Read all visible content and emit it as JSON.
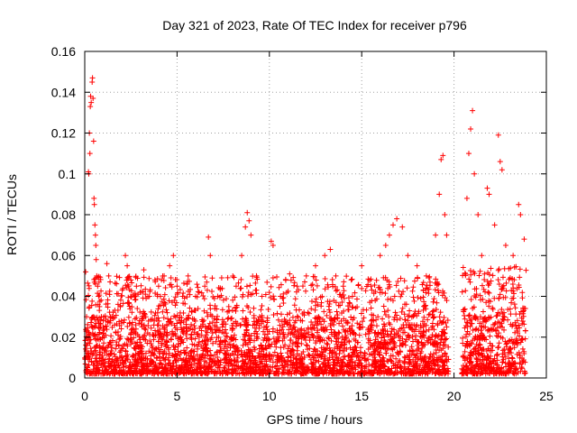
{
  "chart_data": {
    "type": "scatter",
    "title": "Day 321 of 2023, Rate Of TEC Index for receiver p796",
    "xlabel": "GPS time / hours",
    "ylabel": "ROTI / TECUs",
    "xlim": [
      0,
      25
    ],
    "ylim": [
      0,
      0.16
    ],
    "x_ticks": [
      0,
      5,
      10,
      15,
      20,
      25
    ],
    "y_ticks": [
      0,
      0.02,
      0.04,
      0.06,
      0.08,
      0.1,
      0.12,
      0.14,
      0.16
    ],
    "x_tick_labels": [
      "0",
      "5",
      "10",
      "15",
      "20",
      "25"
    ],
    "y_tick_labels": [
      "0",
      "0.02",
      "0.04",
      "0.06",
      "0.08",
      "0.1",
      "0.12",
      "0.14",
      "0.16"
    ],
    "grid": true,
    "marker": "plus",
    "color": "#ff0000",
    "series": [
      {
        "points": [
          [
            0.05,
            0.052
          ],
          [
            0.1,
            0.03
          ],
          [
            0.15,
            0.02
          ],
          [
            0.2,
            0.101
          ],
          [
            0.22,
            0.1
          ],
          [
            0.25,
            0.12
          ],
          [
            0.28,
            0.11
          ],
          [
            0.3,
            0.133
          ],
          [
            0.32,
            0.138
          ],
          [
            0.35,
            0.135
          ],
          [
            0.4,
            0.145
          ],
          [
            0.42,
            0.147
          ],
          [
            0.45,
            0.137
          ],
          [
            0.48,
            0.116
          ],
          [
            0.5,
            0.088
          ],
          [
            0.52,
            0.085
          ],
          [
            0.55,
            0.075
          ],
          [
            0.58,
            0.07
          ],
          [
            0.6,
            0.065
          ],
          [
            0.62,
            0.058
          ],
          [
            0.65,
            0.05
          ],
          [
            0.7,
            0.045
          ],
          [
            0.75,
            0.04
          ],
          [
            0.8,
            0.035
          ],
          [
            0.9,
            0.03
          ],
          [
            1.0,
            0.028
          ],
          [
            1.2,
            0.056
          ],
          [
            1.3,
            0.05
          ],
          [
            1.5,
            0.03
          ],
          [
            2.2,
            0.06
          ],
          [
            2.3,
            0.055
          ],
          [
            2.5,
            0.048
          ],
          [
            2.8,
            0.045
          ],
          [
            3.0,
            0.042
          ],
          [
            3.2,
            0.053
          ],
          [
            3.5,
            0.04
          ],
          [
            3.8,
            0.048
          ],
          [
            4.0,
            0.045
          ],
          [
            4.3,
            0.05
          ],
          [
            4.6,
            0.055
          ],
          [
            4.8,
            0.06
          ],
          [
            5.0,
            0.045
          ],
          [
            5.3,
            0.04
          ],
          [
            5.6,
            0.05
          ],
          [
            6.0,
            0.04
          ],
          [
            6.5,
            0.045
          ],
          [
            6.7,
            0.069
          ],
          [
            6.8,
            0.06
          ],
          [
            7.2,
            0.04
          ],
          [
            7.8,
            0.035
          ],
          [
            8.2,
            0.045
          ],
          [
            8.5,
            0.06
          ],
          [
            8.7,
            0.074
          ],
          [
            8.8,
            0.081
          ],
          [
            8.9,
            0.077
          ],
          [
            9.0,
            0.07
          ],
          [
            9.3,
            0.05
          ],
          [
            9.6,
            0.04
          ],
          [
            10.1,
            0.067
          ],
          [
            10.2,
            0.065
          ],
          [
            10.6,
            0.04
          ],
          [
            11.1,
            0.051
          ],
          [
            11.5,
            0.045
          ],
          [
            12.0,
            0.05
          ],
          [
            12.5,
            0.055
          ],
          [
            13.0,
            0.06
          ],
          [
            13.3,
            0.063
          ],
          [
            13.6,
            0.05
          ],
          [
            14.0,
            0.045
          ],
          [
            14.5,
            0.04
          ],
          [
            15.0,
            0.055
          ],
          [
            15.5,
            0.045
          ],
          [
            16.0,
            0.06
          ],
          [
            16.3,
            0.065
          ],
          [
            16.5,
            0.07
          ],
          [
            16.7,
            0.075
          ],
          [
            16.9,
            0.078
          ],
          [
            17.2,
            0.074
          ],
          [
            17.5,
            0.06
          ],
          [
            18.0,
            0.055
          ],
          [
            18.5,
            0.05
          ],
          [
            19.0,
            0.07
          ],
          [
            19.2,
            0.09
          ],
          [
            19.3,
            0.107
          ],
          [
            19.4,
            0.109
          ],
          [
            19.5,
            0.08
          ],
          [
            19.6,
            0.07
          ],
          [
            20.7,
            0.088
          ],
          [
            20.8,
            0.11
          ],
          [
            20.9,
            0.122
          ],
          [
            21.0,
            0.131
          ],
          [
            21.1,
            0.1
          ],
          [
            21.3,
            0.08
          ],
          [
            21.5,
            0.06
          ],
          [
            21.8,
            0.093
          ],
          [
            21.9,
            0.09
          ],
          [
            22.2,
            0.075
          ],
          [
            22.4,
            0.119
          ],
          [
            22.5,
            0.106
          ],
          [
            22.6,
            0.102
          ],
          [
            22.8,
            0.065
          ],
          [
            23.2,
            0.06
          ],
          [
            23.5,
            0.085
          ],
          [
            23.6,
            0.08
          ],
          [
            23.8,
            0.068
          ]
        ],
        "dense_bands": [
          {
            "x_range": [
              0.0,
              19.7
            ],
            "y_range": [
              0.002,
              0.03
            ]
          },
          {
            "x_range": [
              20.4,
              23.9
            ],
            "y_range": [
              0.002,
              0.035
            ]
          }
        ]
      }
    ]
  }
}
